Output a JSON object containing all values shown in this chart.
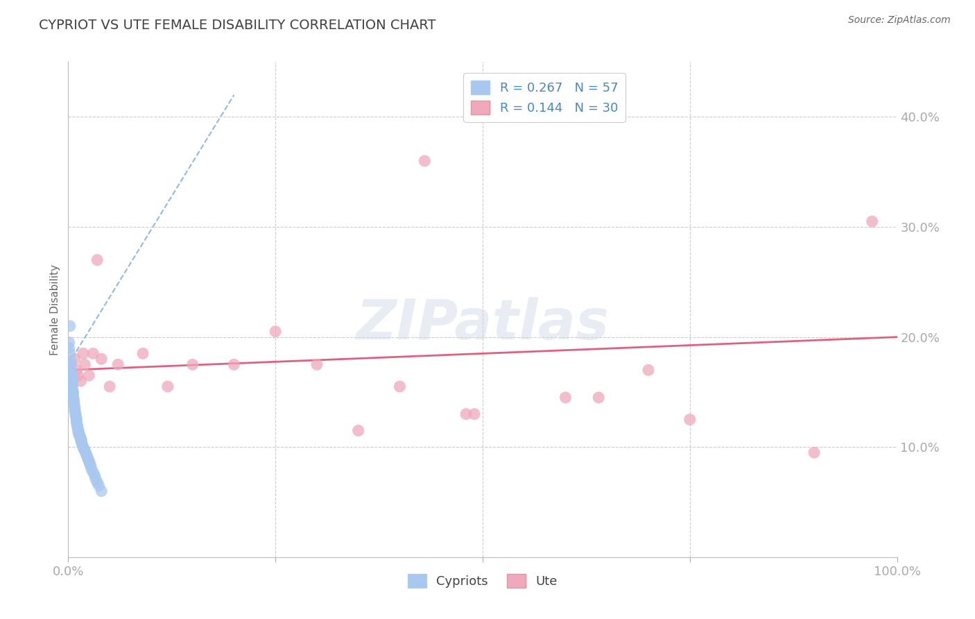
{
  "title": "CYPRIOT VS UTE FEMALE DISABILITY CORRELATION CHART",
  "source": "Source: ZipAtlas.com",
  "ylabel": "Female Disability",
  "watermark": "ZIPatlas",
  "cypriot_R": 0.267,
  "cypriot_N": 57,
  "ute_R": 0.144,
  "ute_N": 30,
  "xlim": [
    0.0,
    1.0
  ],
  "ylim": [
    0.0,
    0.45
  ],
  "yticks": [
    0.0,
    0.1,
    0.2,
    0.3,
    0.4
  ],
  "xticks": [
    0.0,
    0.25,
    0.5,
    0.75,
    1.0
  ],
  "cypriot_color": "#a8c8f0",
  "ute_color": "#f0a8bc",
  "trend_cypriot_color": "#90b8e8",
  "trend_ute_color": "#e06080",
  "background_color": "#ffffff",
  "grid_color": "#cccccc",
  "title_color": "#404040",
  "label_color": "#4488cc",
  "cypriot_x": [
    0.001,
    0.001,
    0.002,
    0.002,
    0.003,
    0.003,
    0.003,
    0.004,
    0.004,
    0.004,
    0.005,
    0.005,
    0.005,
    0.005,
    0.006,
    0.006,
    0.006,
    0.007,
    0.007,
    0.007,
    0.008,
    0.008,
    0.008,
    0.009,
    0.009,
    0.01,
    0.01,
    0.01,
    0.011,
    0.011,
    0.012,
    0.012,
    0.013,
    0.013,
    0.014,
    0.015,
    0.015,
    0.016,
    0.016,
    0.017,
    0.018,
    0.019,
    0.02,
    0.021,
    0.022,
    0.023,
    0.024,
    0.025,
    0.026,
    0.027,
    0.028,
    0.03,
    0.032,
    0.033,
    0.035,
    0.037,
    0.04
  ],
  "cypriot_y": [
    0.195,
    0.19,
    0.21,
    0.185,
    0.178,
    0.175,
    0.17,
    0.168,
    0.165,
    0.162,
    0.16,
    0.158,
    0.155,
    0.152,
    0.15,
    0.148,
    0.145,
    0.143,
    0.14,
    0.138,
    0.136,
    0.134,
    0.132,
    0.13,
    0.128,
    0.126,
    0.124,
    0.122,
    0.12,
    0.118,
    0.116,
    0.114,
    0.113,
    0.111,
    0.11,
    0.108,
    0.107,
    0.106,
    0.104,
    0.102,
    0.1,
    0.098,
    0.097,
    0.095,
    0.093,
    0.091,
    0.089,
    0.087,
    0.085,
    0.083,
    0.08,
    0.077,
    0.074,
    0.071,
    0.068,
    0.065,
    0.06
  ],
  "ute_x": [
    0.002,
    0.008,
    0.01,
    0.012,
    0.015,
    0.018,
    0.02,
    0.025,
    0.03,
    0.035,
    0.04,
    0.05,
    0.06,
    0.09,
    0.12,
    0.15,
    0.2,
    0.25,
    0.3,
    0.35,
    0.4,
    0.43,
    0.48,
    0.49,
    0.6,
    0.64,
    0.7,
    0.75,
    0.9,
    0.97
  ],
  "ute_y": [
    0.175,
    0.18,
    0.17,
    0.165,
    0.16,
    0.185,
    0.175,
    0.165,
    0.185,
    0.27,
    0.18,
    0.155,
    0.175,
    0.185,
    0.155,
    0.175,
    0.175,
    0.205,
    0.175,
    0.115,
    0.155,
    0.36,
    0.13,
    0.13,
    0.145,
    0.145,
    0.17,
    0.125,
    0.095,
    0.305
  ],
  "trend_cyp_x0": 0.0,
  "trend_cyp_x1": 0.2,
  "trend_cyp_y0": 0.175,
  "trend_cyp_y1": 0.42,
  "trend_ute_x0": 0.0,
  "trend_ute_x1": 1.0,
  "trend_ute_y0": 0.17,
  "trend_ute_y1": 0.2
}
